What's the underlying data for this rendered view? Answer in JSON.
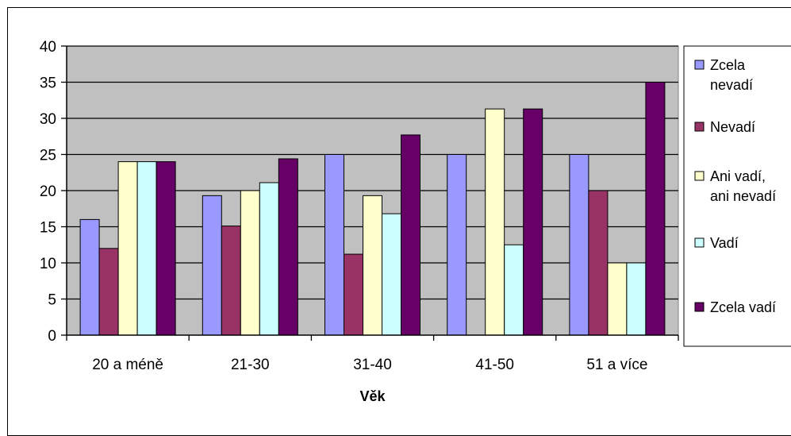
{
  "chart_data": {
    "type": "bar",
    "title": "",
    "xlabel": "Věk",
    "ylabel": "",
    "ylim": [
      0,
      40
    ],
    "yticks": [
      0,
      5,
      10,
      15,
      20,
      25,
      30,
      35,
      40
    ],
    "grid": true,
    "legend_position": "right",
    "plot_background": "#c0c0c0",
    "categories": [
      "20 a méně",
      "21-30",
      "31-40",
      "41-50",
      "51 a více"
    ],
    "series": [
      {
        "name": "Zcela nevadí",
        "legend_lines": [
          "Zcela",
          "nevadí"
        ],
        "color": "#9999ff",
        "values": [
          16,
          19.3,
          25,
          25,
          25
        ]
      },
      {
        "name": "Nevadí",
        "legend_lines": [
          "Nevadí"
        ],
        "color": "#993366",
        "values": [
          12,
          15.1,
          11.2,
          0,
          20
        ]
      },
      {
        "name": "Ani vadí, ani nevadí",
        "legend_lines": [
          "Ani vadí,",
          "ani nevadí"
        ],
        "color": "#ffffcc",
        "values": [
          24,
          20,
          19.3,
          31.3,
          10
        ]
      },
      {
        "name": "Vadí",
        "legend_lines": [
          "Vadí"
        ],
        "color": "#ccffff",
        "values": [
          24,
          21.1,
          16.8,
          12.5,
          10
        ]
      },
      {
        "name": "Zcela vadí",
        "legend_lines": [
          "Zcela vadí"
        ],
        "color": "#660066",
        "values": [
          24,
          24.4,
          27.7,
          31.3,
          35
        ]
      }
    ]
  }
}
